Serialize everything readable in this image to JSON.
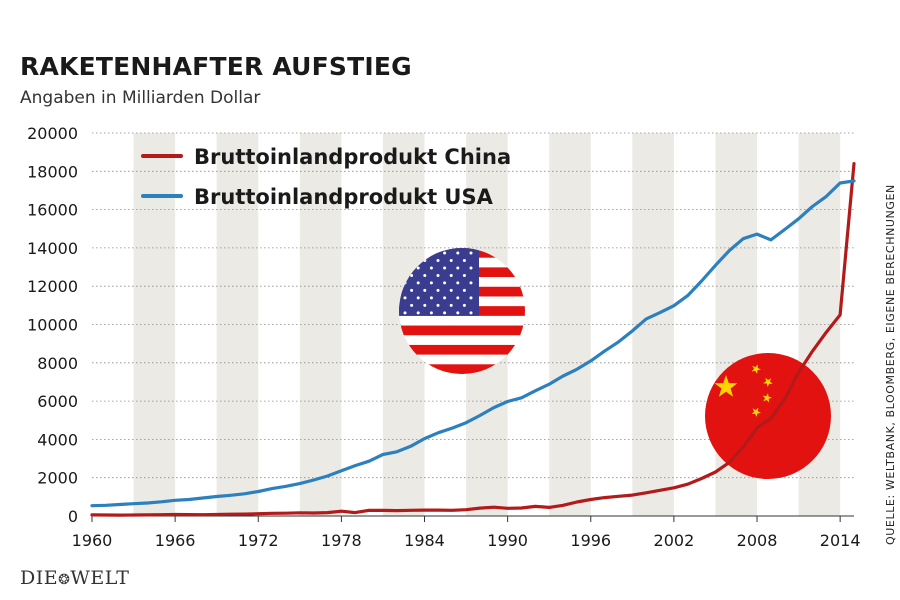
{
  "header": {
    "title": "RAKETENHAFTER AUFSTIEG",
    "subtitle": "Angaben in Milliarden Dollar"
  },
  "source": "QUELLE: WELTBANK, BLOOMBERG, EIGENE BERECHNUNGEN",
  "logo": {
    "left": "DIE",
    "right": "WELT",
    "mark": "❂"
  },
  "colors": {
    "china": "#b31b1b",
    "usa": "#2c80be",
    "stripe": "#eceae5",
    "flag_red": "#e1120f",
    "flag_blue": "#3a3d8f",
    "star_yellow": "#ffd400"
  },
  "icons": [
    "usa-flag-icon",
    "china-flag-icon"
  ],
  "chart_data": {
    "type": "line",
    "title": "RAKETENHAFTER AUFSTIEG",
    "subtitle": "Angaben in Milliarden Dollar",
    "xlabel": "",
    "ylabel": "",
    "xlim": [
      1960,
      2015
    ],
    "ylim": [
      0,
      20000
    ],
    "x_ticks": [
      "1960",
      "1966",
      "1972",
      "1978",
      "1984",
      "1990",
      "1996",
      "2002",
      "2008",
      "2014"
    ],
    "y_ticks": [
      "0",
      "2000",
      "4000",
      "6000",
      "8000",
      "10000",
      "12000",
      "14000",
      "16000",
      "18000",
      "20000"
    ],
    "grid": "vertical stripes",
    "legend_position": "top-left",
    "x": [
      1960,
      1961,
      1962,
      1963,
      1964,
      1965,
      1966,
      1967,
      1968,
      1969,
      1970,
      1971,
      1972,
      1973,
      1974,
      1975,
      1976,
      1977,
      1978,
      1979,
      1980,
      1981,
      1982,
      1983,
      1984,
      1985,
      1986,
      1987,
      1988,
      1989,
      1990,
      1991,
      1992,
      1993,
      1994,
      1995,
      1996,
      1997,
      1998,
      1999,
      2000,
      2001,
      2002,
      2003,
      2004,
      2005,
      2006,
      2007,
      2008,
      2009,
      2010,
      2011,
      2012,
      2013,
      2014,
      2015
    ],
    "series": [
      {
        "name": "Bruttoinlandprodukt China",
        "color": "#b31b1b",
        "values": [
          60,
          50,
          47,
          50,
          60,
          70,
          76,
          72,
          70,
          80,
          92,
          100,
          120,
          140,
          145,
          165,
          155,
          175,
          250,
          180,
          300,
          290,
          280,
          300,
          310,
          310,
          300,
          330,
          410,
          460,
          400,
          420,
          500,
          450,
          560,
          730,
          860,
          960,
          1030,
          1090,
          1210,
          1340,
          1470,
          1660,
          1960,
          2300,
          2800,
          3600,
          4600,
          5100,
          6100,
          7500,
          8600,
          9600,
          10500,
          18400
        ]
      },
      {
        "name": "Bruttoinlandprodukt USA",
        "color": "#2c80be",
        "values": [
          540,
          560,
          600,
          640,
          680,
          740,
          820,
          860,
          940,
          1020,
          1080,
          1160,
          1280,
          1430,
          1550,
          1690,
          1880,
          2090,
          2360,
          2630,
          2860,
          3210,
          3350,
          3640,
          4040,
          4350,
          4590,
          4870,
          5250,
          5660,
          5980,
          6170,
          6540,
          6880,
          7310,
          7660,
          8100,
          8610,
          9090,
          9660,
          10290,
          10620,
          10980,
          11510,
          12270,
          13090,
          13860,
          14480,
          14720,
          14420,
          14960,
          15520,
          16160,
          16690,
          17390,
          17500
        ]
      }
    ]
  }
}
